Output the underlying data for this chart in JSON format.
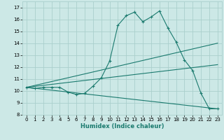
{
  "xlabel": "Humidex (Indice chaleur)",
  "background_color": "#cce8e6",
  "grid_color": "#aacfcc",
  "line_color": "#1a7a6e",
  "xlim": [
    -0.5,
    23.5
  ],
  "ylim": [
    8,
    17.5
  ],
  "xticks": [
    0,
    1,
    2,
    3,
    4,
    5,
    6,
    7,
    8,
    9,
    10,
    11,
    12,
    13,
    14,
    15,
    16,
    17,
    18,
    19,
    20,
    21,
    22,
    23
  ],
  "yticks": [
    8,
    9,
    10,
    11,
    12,
    13,
    14,
    15,
    16,
    17
  ],
  "line1": {
    "x": [
      0,
      1,
      2,
      3,
      4,
      5,
      6,
      7,
      8,
      9,
      10,
      11,
      12,
      13,
      14,
      15,
      16,
      17,
      18,
      19,
      20,
      21,
      22,
      23
    ],
    "y": [
      10.3,
      10.2,
      10.3,
      10.3,
      10.3,
      9.9,
      9.7,
      9.8,
      10.4,
      11.1,
      12.5,
      15.5,
      16.3,
      16.6,
      15.8,
      16.2,
      16.7,
      15.3,
      14.1,
      12.6,
      11.7,
      9.8,
      8.5,
      8.5
    ]
  },
  "line2": {
    "x": [
      0,
      23
    ],
    "y": [
      10.3,
      14.0
    ]
  },
  "line3": {
    "x": [
      0,
      23
    ],
    "y": [
      10.3,
      12.2
    ]
  },
  "line4": {
    "x": [
      0,
      23
    ],
    "y": [
      10.3,
      8.5
    ]
  },
  "xlabel_fontsize": 6,
  "tick_fontsize": 5
}
